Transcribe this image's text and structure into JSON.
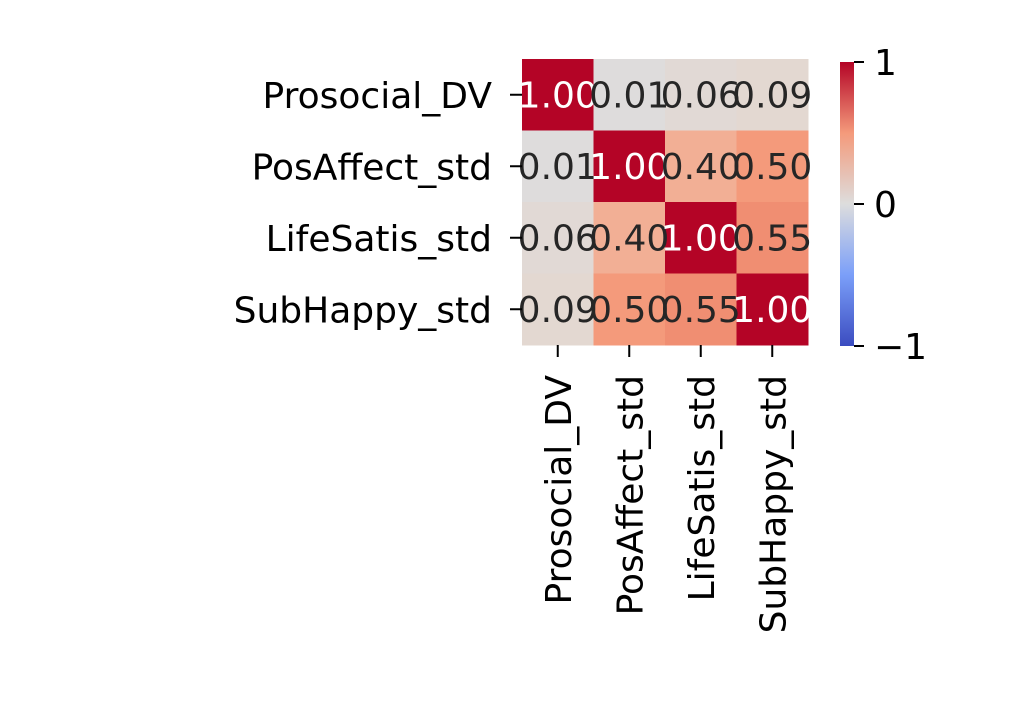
{
  "chart_data": {
    "type": "heatmap",
    "title": "",
    "xlabel": "",
    "ylabel": "",
    "rows": [
      "Prosocial_DV",
      "PosAffect_std",
      "LifeSatis_std",
      "SubHappy_std"
    ],
    "columns": [
      "Prosocial_DV",
      "PosAffect_std",
      "LifeSatis_std",
      "SubHappy_std"
    ],
    "values": [
      [
        1.0,
        0.01,
        0.06,
        0.09
      ],
      [
        0.01,
        1.0,
        0.4,
        0.5
      ],
      [
        0.06,
        0.4,
        1.0,
        0.55
      ],
      [
        0.09,
        0.5,
        0.55,
        1.0
      ]
    ],
    "cell_labels": [
      [
        "1.00",
        "0.01",
        "0.06",
        "0.09"
      ],
      [
        "0.01",
        "1.00",
        "0.40",
        "0.50"
      ],
      [
        "0.06",
        "0.40",
        "1.00",
        "0.55"
      ],
      [
        "0.09",
        "0.50",
        "0.55",
        "1.00"
      ]
    ],
    "colormap": "coolwarm",
    "colormap_stops": [
      "#3b4cc0",
      "#dddddd",
      "#b40426"
    ],
    "vmin": -1,
    "vmax": 1,
    "colorbar": {
      "ticks": [
        1,
        0,
        -1
      ],
      "tick_labels": [
        "1",
        "0",
        "−1"
      ]
    },
    "legend": "colorbar-right",
    "grid": false
  }
}
